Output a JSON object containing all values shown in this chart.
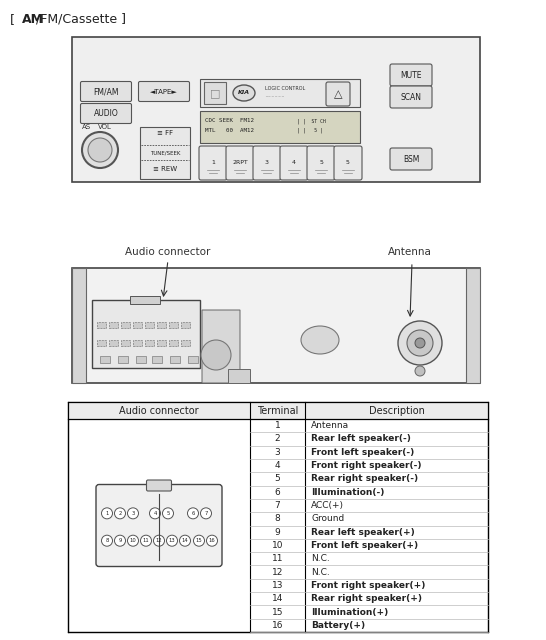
{
  "title_prefix": "[ ",
  "title_bold": "AM",
  "title_suffix": "/FM/Cassette ]",
  "background_color": "#ffffff",
  "table_headers": [
    "Audio connector",
    "Terminal",
    "Description"
  ],
  "terminals": [
    1,
    2,
    3,
    4,
    5,
    6,
    7,
    8,
    9,
    10,
    11,
    12,
    13,
    14,
    15,
    16
  ],
  "descriptions": [
    "Antenna",
    "Rear left speaker(-)",
    "Front left speaker(-)",
    "Front right speaker(-)",
    "Rear right speaker(-)",
    "Illumination(-)",
    "ACC(+)",
    "Ground",
    "Rear left speaker(+)",
    "Front left speaker(+)",
    "N.C.",
    "N.C.",
    "Front right speaker(+)",
    "Rear right speaker(+)",
    "Illumination(+)",
    "Battery(+)"
  ],
  "desc_bold": [
    false,
    true,
    true,
    true,
    true,
    true,
    false,
    false,
    true,
    true,
    false,
    false,
    true,
    true,
    true,
    true
  ],
  "audio_connector_label": "Audio connector",
  "antenna_label": "Antenna"
}
